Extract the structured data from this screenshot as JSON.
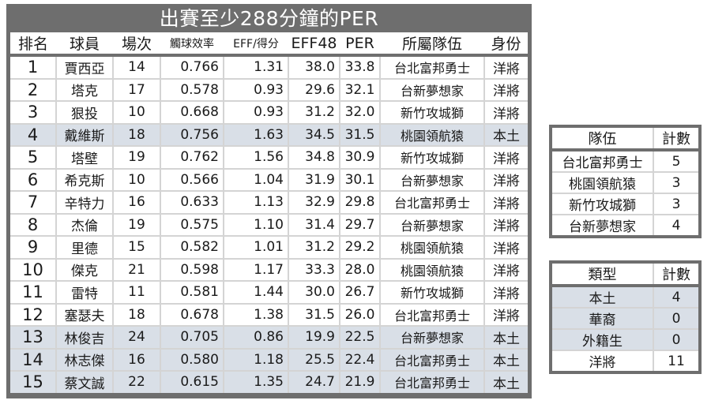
{
  "title": "出賽至少288分鐘的PER",
  "colors": {
    "frame": "#6e6e6e",
    "title_text": "#ffffff",
    "highlight_row": "#d9dfe7",
    "grid_line": "#d4d4d4"
  },
  "main_table": {
    "headers": [
      "排名",
      "球員",
      "場次",
      "觸球效率",
      "EFF/得分",
      "EFF48",
      "PER",
      "所屬隊伍",
      "身份"
    ],
    "rows": [
      {
        "rank": "1",
        "player": "賈西亞",
        "games": "14",
        "touch_eff": "0.766",
        "eff_per_pt": "1.31",
        "eff48": "38.0",
        "per": "33.8",
        "team": "台北富邦勇士",
        "status": "洋將",
        "highlight": false
      },
      {
        "rank": "2",
        "player": "塔克",
        "games": "17",
        "touch_eff": "0.578",
        "eff_per_pt": "0.93",
        "eff48": "29.6",
        "per": "32.1",
        "team": "台新夢想家",
        "status": "洋將",
        "highlight": false
      },
      {
        "rank": "3",
        "player": "狠投",
        "games": "10",
        "touch_eff": "0.668",
        "eff_per_pt": "0.93",
        "eff48": "31.2",
        "per": "32.0",
        "team": "新竹攻城獅",
        "status": "洋將",
        "highlight": false
      },
      {
        "rank": "4",
        "player": "戴維斯",
        "games": "18",
        "touch_eff": "0.756",
        "eff_per_pt": "1.63",
        "eff48": "34.5",
        "per": "31.5",
        "team": "桃園領航猿",
        "status": "本土",
        "highlight": true
      },
      {
        "rank": "5",
        "player": "塔壁",
        "games": "19",
        "touch_eff": "0.762",
        "eff_per_pt": "1.56",
        "eff48": "34.8",
        "per": "30.9",
        "team": "新竹攻城獅",
        "status": "洋將",
        "highlight": false
      },
      {
        "rank": "6",
        "player": "希克斯",
        "games": "10",
        "touch_eff": "0.566",
        "eff_per_pt": "1.04",
        "eff48": "31.9",
        "per": "30.1",
        "team": "台新夢想家",
        "status": "洋將",
        "highlight": false
      },
      {
        "rank": "7",
        "player": "辛特力",
        "games": "16",
        "touch_eff": "0.633",
        "eff_per_pt": "1.13",
        "eff48": "32.9",
        "per": "29.8",
        "team": "台北富邦勇士",
        "status": "洋將",
        "highlight": false
      },
      {
        "rank": "8",
        "player": "杰倫",
        "games": "19",
        "touch_eff": "0.575",
        "eff_per_pt": "1.10",
        "eff48": "31.4",
        "per": "29.7",
        "team": "台新夢想家",
        "status": "洋將",
        "highlight": false
      },
      {
        "rank": "9",
        "player": "里德",
        "games": "15",
        "touch_eff": "0.582",
        "eff_per_pt": "1.01",
        "eff48": "31.2",
        "per": "29.2",
        "team": "桃園領航猿",
        "status": "洋將",
        "highlight": false
      },
      {
        "rank": "10",
        "player": "傑克",
        "games": "21",
        "touch_eff": "0.598",
        "eff_per_pt": "1.17",
        "eff48": "33.3",
        "per": "28.0",
        "team": "桃園領航猿",
        "status": "洋將",
        "highlight": false
      },
      {
        "rank": "11",
        "player": "雷特",
        "games": "11",
        "touch_eff": "0.581",
        "eff_per_pt": "1.44",
        "eff48": "30.0",
        "per": "26.7",
        "team": "新竹攻城獅",
        "status": "洋將",
        "highlight": false
      },
      {
        "rank": "12",
        "player": "塞瑟夫",
        "games": "18",
        "touch_eff": "0.678",
        "eff_per_pt": "1.38",
        "eff48": "31.5",
        "per": "26.0",
        "team": "台北富邦勇士",
        "status": "洋將",
        "highlight": false
      },
      {
        "rank": "13",
        "player": "林俊吉",
        "games": "24",
        "touch_eff": "0.705",
        "eff_per_pt": "0.86",
        "eff48": "19.9",
        "per": "22.5",
        "team": "台新夢想家",
        "status": "本土",
        "highlight": true
      },
      {
        "rank": "14",
        "player": "林志傑",
        "games": "16",
        "touch_eff": "0.580",
        "eff_per_pt": "1.18",
        "eff48": "25.5",
        "per": "22.4",
        "team": "台北富邦勇士",
        "status": "本土",
        "highlight": true
      },
      {
        "rank": "15",
        "player": "蔡文誠",
        "games": "22",
        "touch_eff": "0.615",
        "eff_per_pt": "1.35",
        "eff48": "24.7",
        "per": "21.9",
        "team": "台北富邦勇士",
        "status": "本土",
        "highlight": true
      }
    ]
  },
  "team_table": {
    "headers": [
      "隊伍",
      "計數"
    ],
    "rows": [
      {
        "label": "台北富邦勇士",
        "count": "5"
      },
      {
        "label": "桃園領航猿",
        "count": "3"
      },
      {
        "label": "新竹攻城獅",
        "count": "3"
      },
      {
        "label": "台新夢想家",
        "count": "4"
      }
    ]
  },
  "type_table": {
    "headers": [
      "類型",
      "計數"
    ],
    "rows": [
      {
        "label": "本土",
        "count": "4",
        "highlight": true
      },
      {
        "label": "華裔",
        "count": "0",
        "highlight": true
      },
      {
        "label": "外籍生",
        "count": "0",
        "highlight": true
      },
      {
        "label": "洋將",
        "count": "11",
        "highlight": false
      }
    ]
  }
}
